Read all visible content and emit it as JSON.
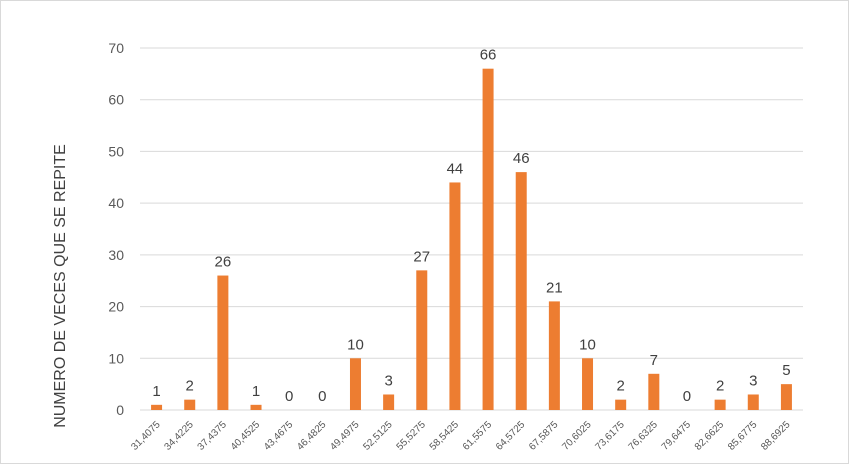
{
  "chart_data": {
    "type": "bar",
    "title": "",
    "xlabel": "",
    "ylabel": "NUMERO DE VECES QUE SE REPITE",
    "categories": [
      "31,4075",
      "34,4225",
      "37,4375",
      "40,4525",
      "43,4675",
      "46,4825",
      "49,4975",
      "52,5125",
      "55,5275",
      "58,5425",
      "61,5575",
      "64,5725",
      "67,5875",
      "70,6025",
      "73,6175",
      "76,6325",
      "79,6475",
      "82,6625",
      "85,6775",
      "88,6925"
    ],
    "values": [
      1,
      2,
      26,
      1,
      0,
      0,
      10,
      3,
      27,
      44,
      66,
      46,
      21,
      10,
      2,
      7,
      0,
      2,
      3,
      5
    ],
    "ylim": [
      0,
      70
    ],
    "yticks": [
      0,
      10,
      20,
      30,
      40,
      50,
      60,
      70
    ],
    "grid": true,
    "legend": "none",
    "bar_color": "#ED7D31",
    "grid_color": "#D9D9D9"
  }
}
